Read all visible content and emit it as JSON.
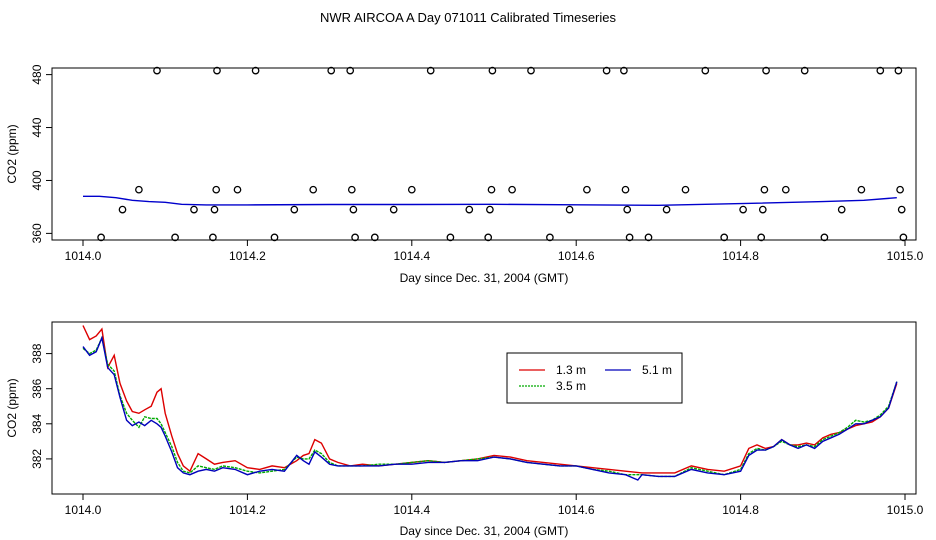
{
  "figure_title": "NWR AIRCOA A  Day 071011  Calibrated Timeseries",
  "chart_data": [
    {
      "type": "scatter",
      "title": "",
      "xlabel": "Day since Dec. 31, 2004 (GMT)",
      "ylabel": "CO2 (ppm)",
      "xlim": [
        1014.0,
        1015.0
      ],
      "ylim": [
        355,
        485
      ],
      "xticks": [
        1014.0,
        1014.2,
        1014.4,
        1014.6,
        1014.8,
        1015.0
      ],
      "xtick_labels": [
        "1014.0",
        "1014.2",
        "1014.4",
        "1014.6",
        "1014.8",
        "1015.0"
      ],
      "yticks": [
        360,
        400,
        440,
        480
      ],
      "ytick_labels": [
        "360",
        "400",
        "440",
        "480"
      ],
      "grid": false,
      "points": [
        [
          1014.022,
          357
        ],
        [
          1014.048,
          378
        ],
        [
          1014.068,
          393
        ],
        [
          1014.09,
          483
        ],
        [
          1014.112,
          357
        ],
        [
          1014.135,
          378
        ],
        [
          1014.158,
          357
        ],
        [
          1014.16,
          378
        ],
        [
          1014.162,
          393
        ],
        [
          1014.163,
          483
        ],
        [
          1014.188,
          393
        ],
        [
          1014.21,
          483
        ],
        [
          1014.233,
          357
        ],
        [
          1014.257,
          378
        ],
        [
          1014.28,
          393
        ],
        [
          1014.302,
          483
        ],
        [
          1014.325,
          483
        ],
        [
          1014.327,
          393
        ],
        [
          1014.329,
          378
        ],
        [
          1014.331,
          357
        ],
        [
          1014.355,
          357
        ],
        [
          1014.378,
          378
        ],
        [
          1014.4,
          393
        ],
        [
          1014.423,
          483
        ],
        [
          1014.447,
          357
        ],
        [
          1014.47,
          378
        ],
        [
          1014.493,
          357
        ],
        [
          1014.495,
          378
        ],
        [
          1014.497,
          393
        ],
        [
          1014.498,
          483
        ],
        [
          1014.522,
          393
        ],
        [
          1014.545,
          483
        ],
        [
          1014.568,
          357
        ],
        [
          1014.592,
          378
        ],
        [
          1014.613,
          393
        ],
        [
          1014.637,
          483
        ],
        [
          1014.658,
          483
        ],
        [
          1014.66,
          393
        ],
        [
          1014.662,
          378
        ],
        [
          1014.665,
          357
        ],
        [
          1014.688,
          357
        ],
        [
          1014.71,
          378
        ],
        [
          1014.733,
          393
        ],
        [
          1014.757,
          483
        ],
        [
          1014.78,
          357
        ],
        [
          1014.803,
          378
        ],
        [
          1014.825,
          357
        ],
        [
          1014.827,
          378
        ],
        [
          1014.829,
          393
        ],
        [
          1014.831,
          483
        ],
        [
          1014.855,
          393
        ],
        [
          1014.878,
          483
        ],
        [
          1014.902,
          357
        ],
        [
          1014.923,
          378
        ],
        [
          1014.947,
          393
        ],
        [
          1014.97,
          483
        ],
        [
          1014.992,
          483
        ],
        [
          1014.994,
          393
        ],
        [
          1014.996,
          378
        ],
        [
          1014.998,
          357
        ]
      ],
      "series": [
        {
          "name": "blue",
          "color": "#0000cc",
          "x": [
            1014.0,
            1014.02,
            1014.04,
            1014.06,
            1014.08,
            1014.1,
            1014.12,
            1014.15,
            1014.2,
            1014.3,
            1014.4,
            1014.5,
            1014.6,
            1014.7,
            1014.8,
            1014.9,
            1014.95,
            1014.99
          ],
          "y": [
            388,
            388,
            387,
            385,
            384,
            383.5,
            382,
            381.5,
            381.5,
            381.8,
            381.8,
            382,
            381.6,
            381.2,
            382.5,
            384,
            385,
            387
          ]
        }
      ]
    },
    {
      "type": "line",
      "title": "",
      "xlabel": "Day since Dec. 31, 2004 (GMT)",
      "ylabel": "CO2 (ppm)",
      "xlim": [
        1014.0,
        1015.0
      ],
      "ylim": [
        380.0,
        389.8
      ],
      "xticks": [
        1014.0,
        1014.2,
        1014.4,
        1014.6,
        1014.8,
        1015.0
      ],
      "xtick_labels": [
        "1014.0",
        "1014.2",
        "1014.4",
        "1014.6",
        "1014.8",
        "1015.0"
      ],
      "yticks": [
        382,
        384,
        386,
        388
      ],
      "ytick_labels": [
        "382",
        "384",
        "386",
        "388"
      ],
      "grid": false,
      "legend": {
        "placement": "top-center",
        "entries": [
          "1.3 m",
          "3.5 m",
          "5.1 m"
        ]
      },
      "series": [
        {
          "name": "1.3 m",
          "color": "#dd0000",
          "x": [
            1014.0,
            1014.008,
            1014.016,
            1014.023,
            1014.03,
            1014.038,
            1014.045,
            1014.053,
            1014.06,
            1014.068,
            1014.075,
            1014.083,
            1014.09,
            1014.095,
            1014.1,
            1014.108,
            1014.115,
            1014.122,
            1014.13,
            1014.14,
            1014.15,
            1014.16,
            1014.17,
            1014.185,
            1014.2,
            1014.215,
            1014.23,
            1014.245,
            1014.26,
            1014.268,
            1014.275,
            1014.282,
            1014.29,
            1014.3,
            1014.31,
            1014.325,
            1014.34,
            1014.36,
            1014.38,
            1014.4,
            1014.42,
            1014.44,
            1014.46,
            1014.48,
            1014.5,
            1014.52,
            1014.54,
            1014.56,
            1014.58,
            1014.6,
            1014.62,
            1014.64,
            1014.66,
            1014.68,
            1014.7,
            1014.72,
            1014.74,
            1014.76,
            1014.78,
            1014.8,
            1014.81,
            1014.82,
            1014.83,
            1014.84,
            1014.85,
            1014.86,
            1014.87,
            1014.88,
            1014.89,
            1014.9,
            1014.91,
            1014.92,
            1014.93,
            1014.94,
            1014.95,
            1014.96,
            1014.97,
            1014.98,
            1014.99
          ],
          "y": [
            389.6,
            388.8,
            389.0,
            389.4,
            387.2,
            387.9,
            386.3,
            385.3,
            384.7,
            384.6,
            384.8,
            385.0,
            385.8,
            386.0,
            384.6,
            383.3,
            382.3,
            381.6,
            381.3,
            382.3,
            382.0,
            381.7,
            381.8,
            381.9,
            381.5,
            381.4,
            381.6,
            381.5,
            381.9,
            382.2,
            382.3,
            383.1,
            382.9,
            382.0,
            381.8,
            381.6,
            381.7,
            381.6,
            381.7,
            381.8,
            381.9,
            381.8,
            381.9,
            382.0,
            382.2,
            382.1,
            381.9,
            381.8,
            381.7,
            381.6,
            381.5,
            381.4,
            381.3,
            381.2,
            381.2,
            381.2,
            381.6,
            381.4,
            381.3,
            381.6,
            382.6,
            382.8,
            382.6,
            382.7,
            383.1,
            382.8,
            382.8,
            382.9,
            382.8,
            383.2,
            383.4,
            383.5,
            383.7,
            383.9,
            384.0,
            384.1,
            384.4,
            384.9,
            386.3
          ]
        },
        {
          "name": "3.5 m",
          "color": "#00aa00",
          "x": [
            1014.0,
            1014.008,
            1014.016,
            1014.023,
            1014.03,
            1014.038,
            1014.045,
            1014.053,
            1014.06,
            1014.068,
            1014.075,
            1014.083,
            1014.09,
            1014.095,
            1014.1,
            1014.108,
            1014.115,
            1014.122,
            1014.13,
            1014.14,
            1014.15,
            1014.16,
            1014.17,
            1014.185,
            1014.2,
            1014.215,
            1014.23,
            1014.245,
            1014.26,
            1014.268,
            1014.275,
            1014.282,
            1014.29,
            1014.3,
            1014.31,
            1014.325,
            1014.34,
            1014.36,
            1014.38,
            1014.4,
            1014.42,
            1014.44,
            1014.46,
            1014.48,
            1014.5,
            1014.52,
            1014.54,
            1014.56,
            1014.58,
            1014.6,
            1014.62,
            1014.64,
            1014.66,
            1014.68,
            1014.7,
            1014.72,
            1014.74,
            1014.76,
            1014.78,
            1014.8,
            1014.81,
            1014.82,
            1014.83,
            1014.84,
            1014.85,
            1014.86,
            1014.87,
            1014.88,
            1014.89,
            1014.9,
            1014.91,
            1014.92,
            1014.93,
            1014.94,
            1014.95,
            1014.96,
            1014.97,
            1014.98,
            1014.99
          ],
          "y": [
            388.3,
            388.0,
            388.2,
            388.9,
            387.4,
            387.0,
            385.6,
            384.6,
            384.2,
            383.8,
            384.4,
            384.3,
            384.3,
            384.0,
            383.5,
            382.7,
            381.8,
            381.3,
            381.2,
            381.6,
            381.5,
            381.4,
            381.6,
            381.5,
            381.3,
            381.2,
            381.3,
            381.4,
            382.1,
            382.0,
            382.0,
            382.5,
            382.3,
            381.8,
            381.6,
            381.6,
            381.6,
            381.7,
            381.7,
            381.8,
            381.9,
            381.8,
            381.9,
            382.0,
            382.1,
            382.0,
            381.8,
            381.7,
            381.6,
            381.6,
            381.4,
            381.3,
            381.1,
            381.1,
            381.0,
            381.0,
            381.5,
            381.3,
            381.1,
            381.4,
            382.3,
            382.6,
            382.5,
            382.7,
            383.0,
            382.8,
            382.7,
            382.8,
            382.7,
            383.1,
            383.3,
            383.5,
            383.8,
            384.2,
            384.1,
            384.2,
            384.5,
            385.0,
            386.4
          ]
        },
        {
          "name": "5.1 m",
          "color": "#0000bb",
          "x": [
            1014.0,
            1014.008,
            1014.016,
            1014.023,
            1014.03,
            1014.038,
            1014.045,
            1014.053,
            1014.06,
            1014.068,
            1014.075,
            1014.083,
            1014.09,
            1014.095,
            1014.1,
            1014.108,
            1014.115,
            1014.122,
            1014.13,
            1014.14,
            1014.15,
            1014.16,
            1014.17,
            1014.185,
            1014.2,
            1014.215,
            1014.23,
            1014.245,
            1014.26,
            1014.268,
            1014.275,
            1014.282,
            1014.29,
            1014.3,
            1014.31,
            1014.325,
            1014.34,
            1014.36,
            1014.38,
            1014.4,
            1014.42,
            1014.44,
            1014.46,
            1014.48,
            1014.5,
            1014.52,
            1014.54,
            1014.56,
            1014.58,
            1014.6,
            1014.62,
            1014.64,
            1014.66,
            1014.675,
            1014.68,
            1014.7,
            1014.72,
            1014.74,
            1014.76,
            1014.78,
            1014.8,
            1014.81,
            1014.82,
            1014.83,
            1014.84,
            1014.85,
            1014.86,
            1014.87,
            1014.88,
            1014.89,
            1014.9,
            1014.91,
            1014.92,
            1014.93,
            1014.94,
            1014.95,
            1014.96,
            1014.97,
            1014.98,
            1014.99
          ],
          "y": [
            388.4,
            387.9,
            388.1,
            388.9,
            387.2,
            386.8,
            385.5,
            384.2,
            383.9,
            384.1,
            383.9,
            384.2,
            384.0,
            383.8,
            383.3,
            382.4,
            381.5,
            381.2,
            381.1,
            381.3,
            381.4,
            381.3,
            381.5,
            381.4,
            381.1,
            381.3,
            381.4,
            381.3,
            382.2,
            381.9,
            381.7,
            382.4,
            382.1,
            381.7,
            381.6,
            381.6,
            381.6,
            381.6,
            381.7,
            381.7,
            381.8,
            381.8,
            381.9,
            381.9,
            382.1,
            382.0,
            381.8,
            381.7,
            381.6,
            381.6,
            381.4,
            381.2,
            381.1,
            380.8,
            381.1,
            381.0,
            381.0,
            381.4,
            381.2,
            381.1,
            381.3,
            382.2,
            382.5,
            382.5,
            382.7,
            383.1,
            382.8,
            382.6,
            382.8,
            382.6,
            383.0,
            383.2,
            383.4,
            383.7,
            384.0,
            384.0,
            384.2,
            384.4,
            384.9,
            386.4
          ]
        }
      ]
    }
  ]
}
